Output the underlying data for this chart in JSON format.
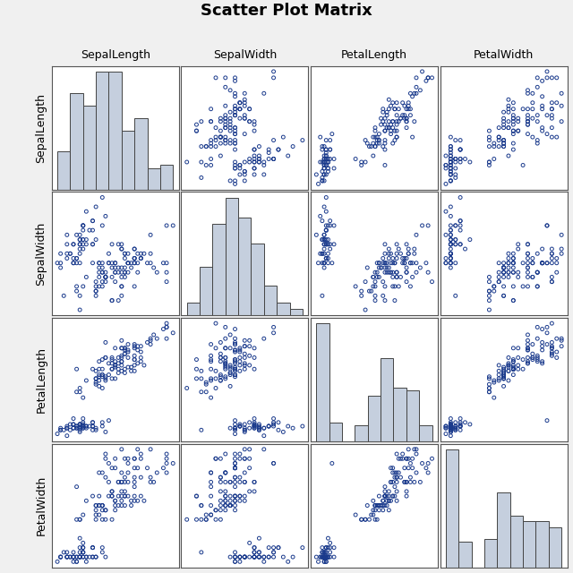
{
  "title": "Scatter Plot Matrix",
  "variables": [
    "SepalLength",
    "SepalWidth",
    "PetalLength",
    "PetalWidth"
  ],
  "title_fontsize": 13,
  "title_fontweight": "bold",
  "label_fontsize": 9,
  "scatter_facecolor": "none",
  "scatter_edgecolor": "#1A3A8C",
  "scatter_marker": "o",
  "scatter_size": 8,
  "scatter_linewidth": 0.7,
  "hist_color": "#C5CFDE",
  "hist_edgecolor": "#444444",
  "hist_linewidth": 0.7,
  "hist_bins": 9,
  "background_color": "#f0f0f0",
  "panel_background": "#ffffff",
  "axis_border_color": "#555555",
  "sepal_length": [
    5.1,
    4.9,
    4.7,
    4.6,
    5.0,
    5.4,
    4.6,
    5.0,
    4.4,
    4.9,
    5.4,
    4.8,
    4.8,
    4.3,
    5.8,
    5.7,
    5.4,
    5.1,
    5.7,
    5.1,
    5.4,
    5.1,
    4.6,
    5.1,
    4.8,
    5.0,
    5.0,
    5.2,
    5.2,
    4.7,
    4.8,
    5.4,
    5.2,
    5.5,
    4.9,
    5.0,
    5.5,
    4.9,
    4.4,
    5.1,
    5.0,
    4.5,
    4.4,
    5.0,
    5.1,
    4.8,
    5.1,
    4.6,
    5.3,
    5.0,
    7.0,
    6.4,
    6.9,
    5.5,
    6.5,
    5.7,
    6.3,
    4.9,
    6.6,
    5.2,
    5.0,
    5.9,
    6.0,
    6.1,
    5.6,
    6.7,
    5.6,
    5.8,
    6.2,
    5.6,
    5.9,
    6.1,
    6.3,
    6.1,
    6.4,
    6.6,
    6.8,
    6.7,
    6.0,
    5.7,
    5.5,
    5.5,
    5.8,
    6.0,
    5.4,
    6.0,
    6.7,
    6.3,
    5.6,
    5.5,
    5.5,
    6.1,
    5.8,
    5.0,
    5.6,
    5.7,
    5.7,
    6.2,
    5.1,
    5.7,
    6.3,
    5.8,
    7.1,
    6.3,
    6.5,
    7.6,
    4.9,
    7.3,
    6.7,
    7.2,
    6.5,
    6.4,
    6.8,
    5.7,
    5.8,
    6.4,
    6.5,
    7.7,
    7.7,
    6.0,
    6.9,
    5.6,
    7.7,
    6.3,
    6.7,
    7.2,
    6.2,
    6.1,
    6.4,
    7.2,
    7.4,
    7.9,
    6.4,
    6.3,
    6.1,
    7.7,
    6.3,
    6.4,
    6.0,
    6.9,
    6.7,
    6.9,
    5.8,
    6.8,
    6.7,
    6.7,
    6.3,
    6.5,
    6.2,
    5.9
  ],
  "sepal_width": [
    3.5,
    3.0,
    3.2,
    3.1,
    3.6,
    3.9,
    3.4,
    3.4,
    2.9,
    3.1,
    3.7,
    3.4,
    3.0,
    3.0,
    4.0,
    4.4,
    3.9,
    3.5,
    3.8,
    3.8,
    3.4,
    3.7,
    3.6,
    3.3,
    3.4,
    3.0,
    3.4,
    3.5,
    3.4,
    3.2,
    3.1,
    3.4,
    4.1,
    4.2,
    3.1,
    3.2,
    3.5,
    3.6,
    3.0,
    3.4,
    3.5,
    2.3,
    3.2,
    3.5,
    3.8,
    3.0,
    3.8,
    3.2,
    3.7,
    3.3,
    3.2,
    3.2,
    3.1,
    2.3,
    2.8,
    2.8,
    3.3,
    2.4,
    2.9,
    2.7,
    2.0,
    3.0,
    2.2,
    2.9,
    2.9,
    3.1,
    3.0,
    2.7,
    2.2,
    2.5,
    3.2,
    2.8,
    2.5,
    2.8,
    2.9,
    3.0,
    2.8,
    3.0,
    2.9,
    2.6,
    2.4,
    2.4,
    2.7,
    2.7,
    3.0,
    3.4,
    3.1,
    2.3,
    3.0,
    2.5,
    2.6,
    3.0,
    2.6,
    2.3,
    2.7,
    3.0,
    2.9,
    2.9,
    2.5,
    2.8,
    3.3,
    2.7,
    3.0,
    2.9,
    3.0,
    3.0,
    2.5,
    2.9,
    2.5,
    3.6,
    3.2,
    2.7,
    3.0,
    2.5,
    2.8,
    3.2,
    3.0,
    3.8,
    2.6,
    2.2,
    3.2,
    2.8,
    2.8,
    2.7,
    3.3,
    3.2,
    2.8,
    3.0,
    2.8,
    3.0,
    2.8,
    3.8,
    2.8,
    2.8,
    2.6,
    3.0,
    3.4,
    3.1,
    3.0,
    3.1,
    3.1,
    3.1,
    2.7,
    3.2,
    3.3,
    3.0,
    2.5,
    3.0,
    3.4,
    3.0
  ],
  "petal_length": [
    1.4,
    1.4,
    1.3,
    1.5,
    1.4,
    1.7,
    1.4,
    1.5,
    1.4,
    1.5,
    1.5,
    1.6,
    1.4,
    1.1,
    1.2,
    1.5,
    1.3,
    1.4,
    1.7,
    1.5,
    1.7,
    1.5,
    1.0,
    1.7,
    1.9,
    1.6,
    1.6,
    1.5,
    1.4,
    1.6,
    1.6,
    1.5,
    1.5,
    1.4,
    1.5,
    1.2,
    1.3,
    1.4,
    1.3,
    1.5,
    1.3,
    1.3,
    1.3,
    1.6,
    1.9,
    1.4,
    1.6,
    1.4,
    1.5,
    1.4,
    4.7,
    4.5,
    4.9,
    4.0,
    4.6,
    4.5,
    4.7,
    3.3,
    4.6,
    3.9,
    3.5,
    4.2,
    4.0,
    4.7,
    3.6,
    4.4,
    4.5,
    4.1,
    4.5,
    3.9,
    4.8,
    4.0,
    4.9,
    4.7,
    4.3,
    4.4,
    4.8,
    5.0,
    4.5,
    3.5,
    3.8,
    3.7,
    3.9,
    5.1,
    4.5,
    4.5,
    4.7,
    4.4,
    4.1,
    4.0,
    4.4,
    4.6,
    4.0,
    3.3,
    4.2,
    4.2,
    4.2,
    4.3,
    3.0,
    4.1,
    6.0,
    5.1,
    5.9,
    5.6,
    5.8,
    6.6,
    4.5,
    6.3,
    5.8,
    6.1,
    5.1,
    5.3,
    5.5,
    5.0,
    5.1,
    5.3,
    5.5,
    6.7,
    6.9,
    5.0,
    5.7,
    4.9,
    6.7,
    4.9,
    5.7,
    6.0,
    4.8,
    4.9,
    5.6,
    5.8,
    6.1,
    6.4,
    5.6,
    5.1,
    5.6,
    6.1,
    5.6,
    5.5,
    4.8,
    5.4,
    5.6,
    5.1,
    5.9,
    5.7,
    5.2,
    5.0,
    5.2,
    5.4,
    5.1,
    1.8
  ],
  "petal_width": [
    0.2,
    0.2,
    0.2,
    0.2,
    0.2,
    0.4,
    0.3,
    0.2,
    0.2,
    0.1,
    0.2,
    0.2,
    0.1,
    0.1,
    0.2,
    0.4,
    0.4,
    0.3,
    0.3,
    0.3,
    0.2,
    0.4,
    0.2,
    0.5,
    0.2,
    0.2,
    0.4,
    0.2,
    0.2,
    0.2,
    0.2,
    0.4,
    0.1,
    0.2,
    0.2,
    0.2,
    0.2,
    0.1,
    0.2,
    0.3,
    0.3,
    0.3,
    0.2,
    0.6,
    0.4,
    0.3,
    0.2,
    0.2,
    0.2,
    0.2,
    1.4,
    1.5,
    1.5,
    1.3,
    1.5,
    1.3,
    1.6,
    1.0,
    1.3,
    1.4,
    1.0,
    1.5,
    1.0,
    1.4,
    1.3,
    1.4,
    1.5,
    1.0,
    1.5,
    1.1,
    1.8,
    1.3,
    1.5,
    1.2,
    1.3,
    1.4,
    1.4,
    1.7,
    1.5,
    1.0,
    1.1,
    1.0,
    1.2,
    1.6,
    1.5,
    1.6,
    1.5,
    1.3,
    1.3,
    1.3,
    1.2,
    1.4,
    1.2,
    1.0,
    1.3,
    1.2,
    1.3,
    1.3,
    1.1,
    1.3,
    2.5,
    1.9,
    2.1,
    1.8,
    2.2,
    2.1,
    1.7,
    1.8,
    1.8,
    2.5,
    2.0,
    1.9,
    2.1,
    2.0,
    2.4,
    2.3,
    1.8,
    2.2,
    2.3,
    1.5,
    2.3,
    2.0,
    2.0,
    1.8,
    2.1,
    1.8,
    1.8,
    2.1,
    1.6,
    1.9,
    2.0,
    2.2,
    1.5,
    1.4,
    2.3,
    2.4,
    1.8,
    1.8,
    2.1,
    2.4,
    2.3,
    1.9,
    2.3,
    2.5,
    2.3,
    1.9,
    2.0,
    2.3,
    1.8,
    2.2
  ]
}
